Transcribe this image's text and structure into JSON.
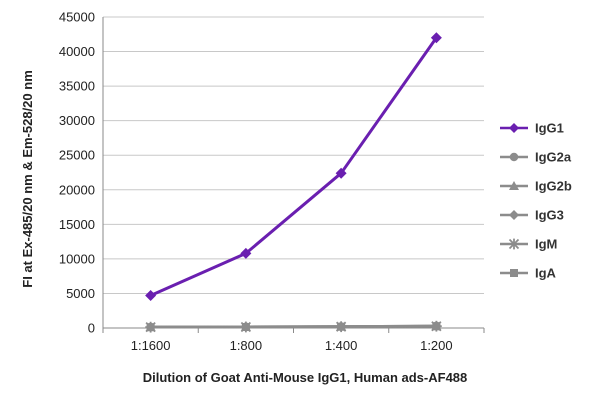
{
  "chart_data": {
    "type": "line",
    "categories": [
      "1:1600",
      "1:800",
      "1:400",
      "1:200"
    ],
    "ylabel": "FI at Ex-485/20 nm & Em-528/20 nm",
    "xlabel": "Dilution of Goat Anti-Mouse IgG1, Human ads-AF488",
    "ylim": [
      0,
      45000
    ],
    "yticks": [
      0,
      5000,
      10000,
      15000,
      20000,
      25000,
      30000,
      35000,
      40000,
      45000
    ],
    "grid": true,
    "legend_position": "right",
    "series": [
      {
        "name": "IgG1",
        "values": [
          4700,
          10800,
          22400,
          42000
        ],
        "color": "#6a1fb0",
        "marker": "diamond"
      },
      {
        "name": "IgG2a",
        "values": [
          150,
          180,
          220,
          300
        ],
        "color": "#8c8c8c",
        "marker": "circle"
      },
      {
        "name": "IgG2b",
        "values": [
          140,
          170,
          210,
          280
        ],
        "color": "#8c8c8c",
        "marker": "triangle"
      },
      {
        "name": "IgG3",
        "values": [
          130,
          160,
          200,
          270
        ],
        "color": "#8c8c8c",
        "marker": "diamond"
      },
      {
        "name": "IgM",
        "values": [
          120,
          150,
          190,
          260
        ],
        "color": "#8c8c8c",
        "marker": "star"
      },
      {
        "name": "IgA",
        "values": [
          110,
          140,
          180,
          250
        ],
        "color": "#8c8c8c",
        "marker": "square"
      }
    ]
  }
}
